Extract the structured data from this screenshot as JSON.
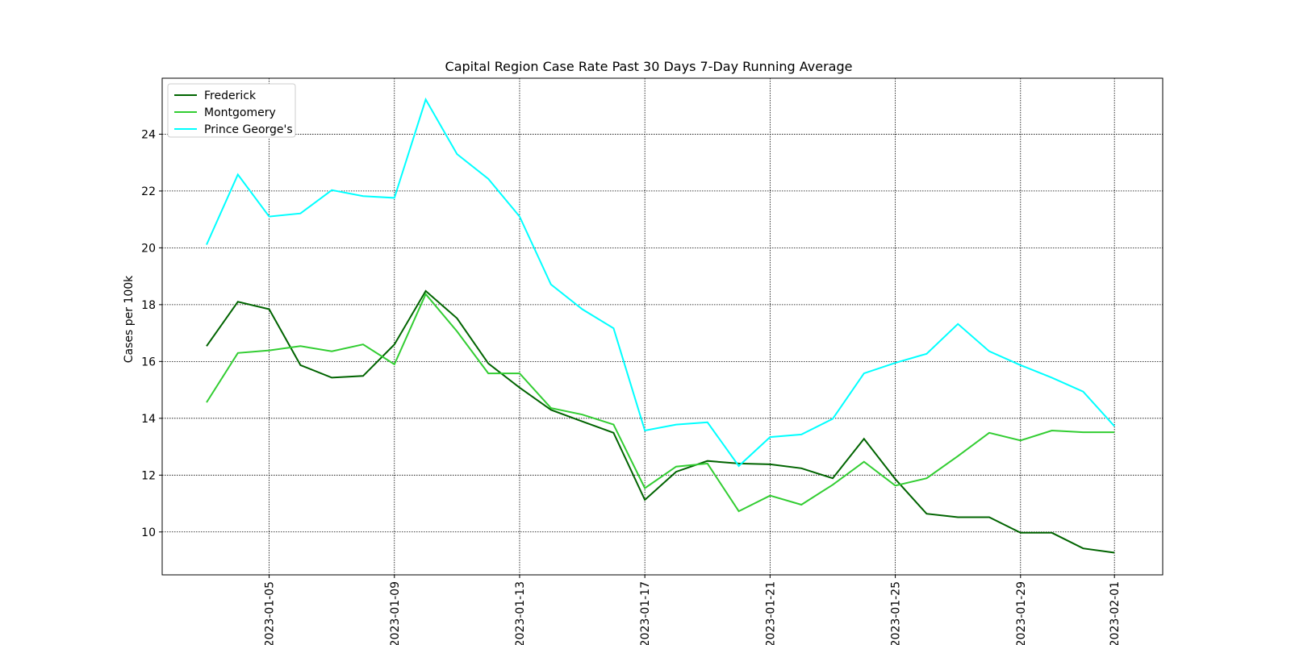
{
  "chart_data": {
    "type": "line",
    "title": "Capital Region Case Rate  Past 30 Days 7-Day Running Average",
    "y_label": "Cases per 100k",
    "x": [
      "2023-01-03",
      "2023-01-04",
      "2023-01-05",
      "2023-01-06",
      "2023-01-07",
      "2023-01-08",
      "2023-01-09",
      "2023-01-10",
      "2023-01-11",
      "2023-01-12",
      "2023-01-13",
      "2023-01-14",
      "2023-01-15",
      "2023-01-16",
      "2023-01-17",
      "2023-01-18",
      "2023-01-19",
      "2023-01-20",
      "2023-01-21",
      "2023-01-22",
      "2023-01-23",
      "2023-01-24",
      "2023-01-25",
      "2023-01-26",
      "2023-01-27",
      "2023-01-28",
      "2023-01-29",
      "2023-01-30",
      "2023-01-31",
      "2023-02-01"
    ],
    "series": [
      {
        "name": "Frederick",
        "color": "#006400",
        "values": [
          16.54,
          18.1,
          17.84,
          15.87,
          15.43,
          15.49,
          16.6,
          18.48,
          17.52,
          15.93,
          15.08,
          14.3,
          13.89,
          13.49,
          11.13,
          12.12,
          12.5,
          12.41,
          12.38,
          12.24,
          11.89,
          13.28,
          11.86,
          10.64,
          10.52,
          10.52,
          9.97,
          9.97,
          9.42,
          9.27
        ]
      },
      {
        "name": "Montgomery",
        "color": "#32cd32",
        "values": [
          14.56,
          16.3,
          16.39,
          16.54,
          16.36,
          16.6,
          15.9,
          18.37,
          17.06,
          15.58,
          15.58,
          14.36,
          14.13,
          13.78,
          11.54,
          12.3,
          12.41,
          10.73,
          11.28,
          10.96,
          11.66,
          12.47,
          11.63,
          11.89,
          12.67,
          13.49,
          13.22,
          13.57,
          13.51,
          13.51
        ]
      },
      {
        "name": "Prince George's",
        "color": "#00ffff",
        "values": [
          20.11,
          22.58,
          21.1,
          21.21,
          22.03,
          21.82,
          21.76,
          25.22,
          23.3,
          22.43,
          21.1,
          18.71,
          17.84,
          17.17,
          13.57,
          13.78,
          13.86,
          12.32,
          13.34,
          13.43,
          13.98,
          15.58,
          15.95,
          16.27,
          17.32,
          16.36,
          15.87,
          15.43,
          14.94,
          13.72
        ]
      }
    ],
    "xlim": [
      "2023-01-01T14:00",
      "2023-02-02T13:00"
    ],
    "xticks": [
      "2023-01-05",
      "2023-01-09",
      "2023-01-13",
      "2023-01-17",
      "2023-01-21",
      "2023-01-25",
      "2023-01-29",
      "2023-02-01"
    ],
    "ylim": [
      8.49,
      25.97
    ],
    "yticks": [
      10,
      12,
      14,
      16,
      18,
      20,
      22,
      24
    ],
    "grid": true,
    "legend": "upper left"
  }
}
